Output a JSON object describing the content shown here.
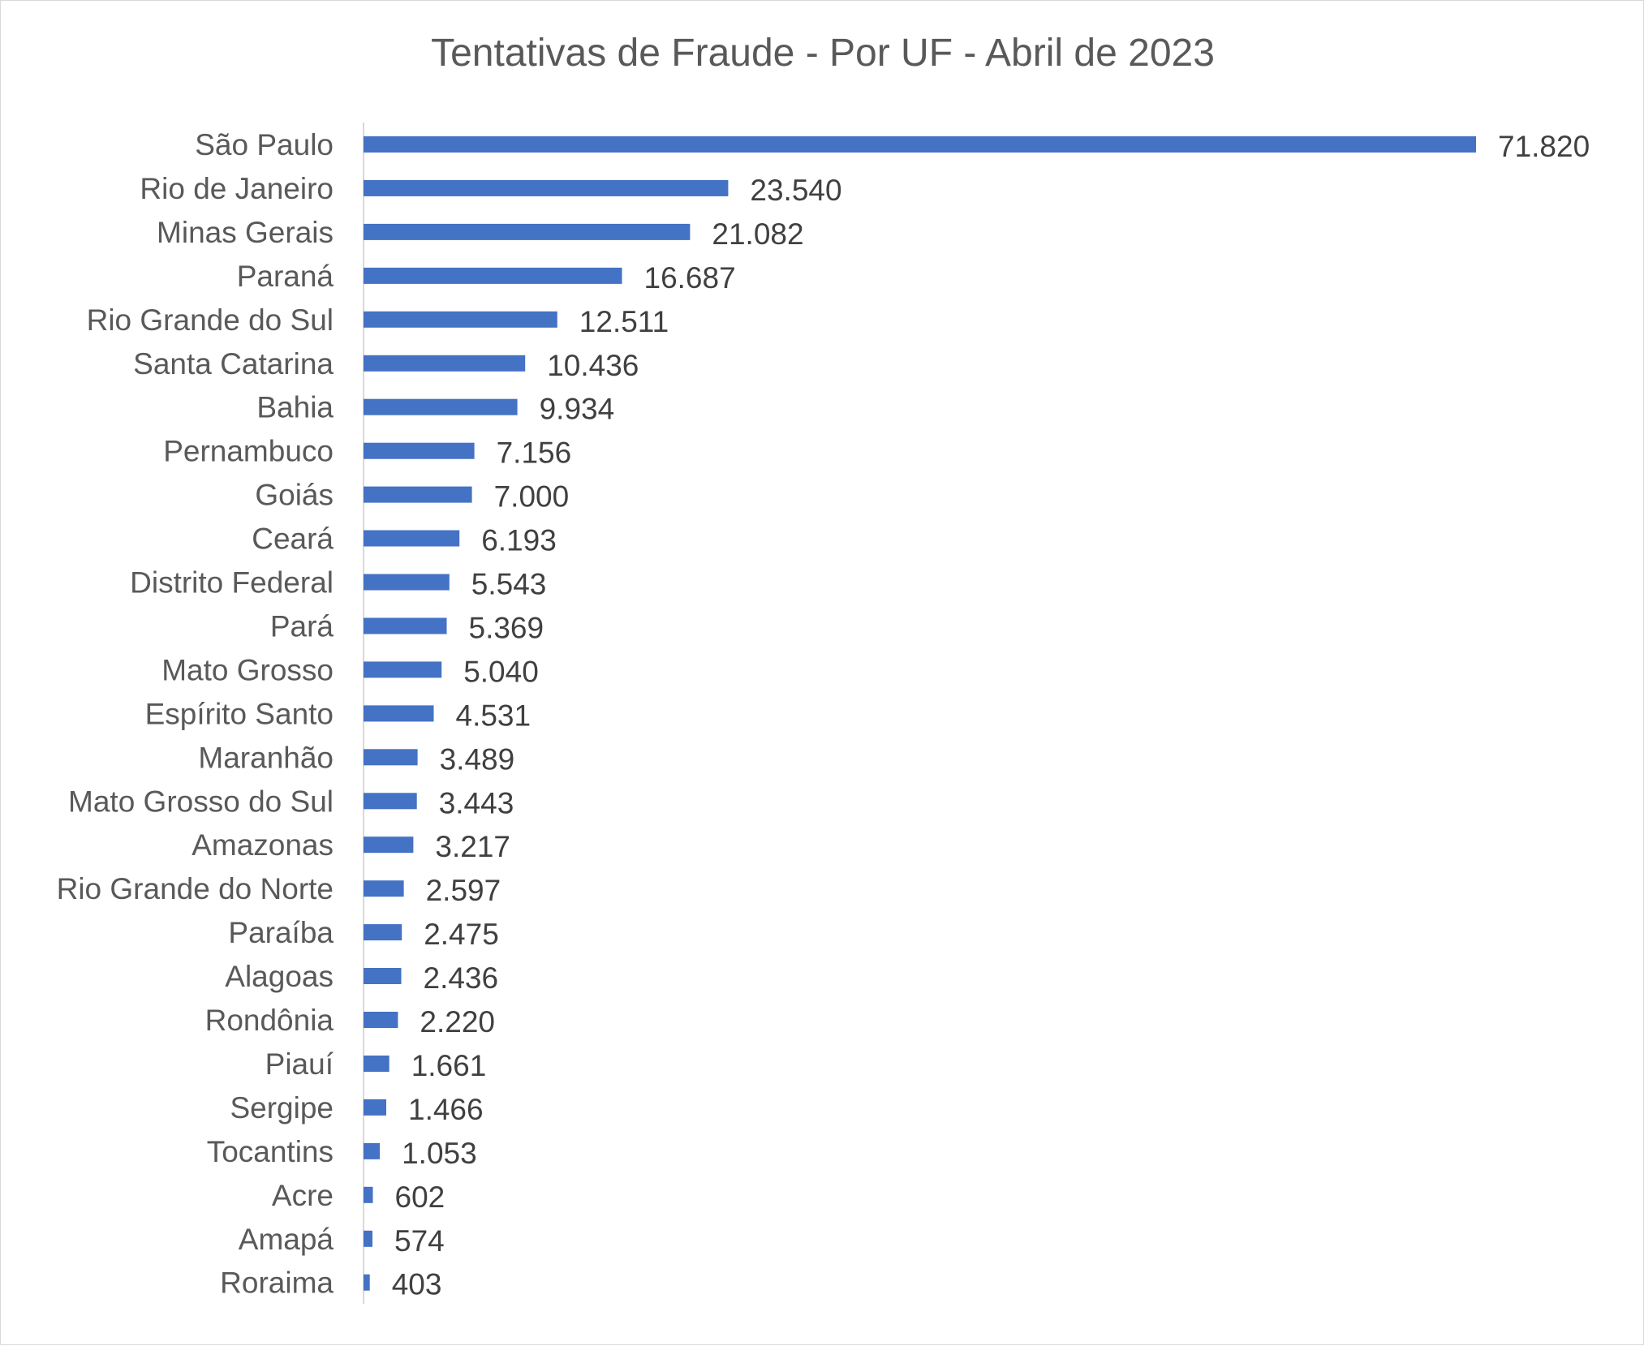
{
  "chart_data": {
    "type": "bar",
    "orientation": "horizontal",
    "title": "Tentativas de Fraude - Por UF - Abril de 2023",
    "categories": [
      "São Paulo",
      "Rio de Janeiro",
      "Minas Gerais",
      "Paraná",
      "Rio Grande do Sul",
      "Santa Catarina",
      "Bahia",
      "Pernambuco",
      "Goiás",
      "Ceará",
      "Distrito Federal",
      "Pará",
      "Mato Grosso",
      "Espírito Santo",
      "Maranhão",
      "Mato Grosso do Sul",
      "Amazonas",
      "Rio Grande do Norte",
      "Paraíba",
      "Alagoas",
      "Rondônia",
      "Piauí",
      "Sergipe",
      "Tocantins",
      "Acre",
      "Amapá",
      "Roraima"
    ],
    "values": [
      71820,
      23540,
      21082,
      16687,
      12511,
      10436,
      9934,
      7156,
      7000,
      6193,
      5543,
      5369,
      5040,
      4531,
      3489,
      3443,
      3217,
      2597,
      2475,
      2436,
      2220,
      1661,
      1466,
      1053,
      602,
      574,
      403
    ],
    "value_labels": [
      "71.820",
      "23.540",
      "21.082",
      "16.687",
      "12.511",
      "10.436",
      "9.934",
      "7.156",
      "7.000",
      "6.193",
      "5.543",
      "5.369",
      "5.040",
      "4.531",
      "3.489",
      "3.443",
      "3.217",
      "2.597",
      "2.475",
      "2.436",
      "2.220",
      "1.661",
      "1.466",
      "1.053",
      "602",
      "574",
      "403"
    ],
    "xlabel": "",
    "ylabel": "",
    "grid": false,
    "legend": "none",
    "bar_color": "#4472c4",
    "axis_color": "#d9d9d9"
  }
}
